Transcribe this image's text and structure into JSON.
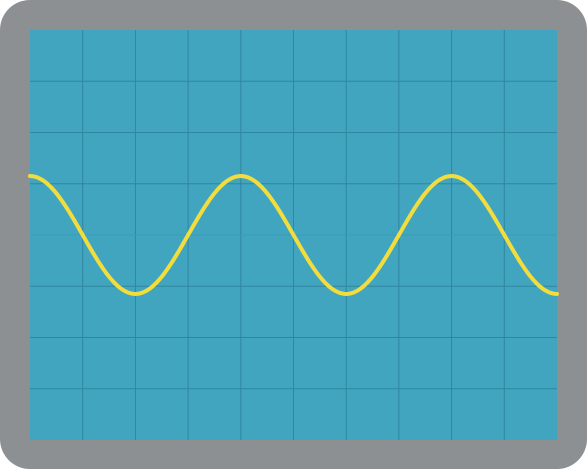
{
  "chart_data": {
    "type": "line",
    "title": "",
    "xlabel": "",
    "ylabel": "",
    "x_divisions": 10,
    "y_divisions": 8,
    "xlim": [
      0,
      10
    ],
    "ylim": [
      -4,
      4
    ],
    "grid": true,
    "series": [
      {
        "waveform": "cosine",
        "amplitude": 1.15,
        "offset": 0.0,
        "period": 4.0,
        "phase": 0.0
      }
    ]
  },
  "colors": {
    "bezel": "#8c9092",
    "screen": "#42a5bf",
    "grid": "#2e86a0",
    "center_line": "#3a9bb6",
    "trace": "#f2dd3c"
  }
}
